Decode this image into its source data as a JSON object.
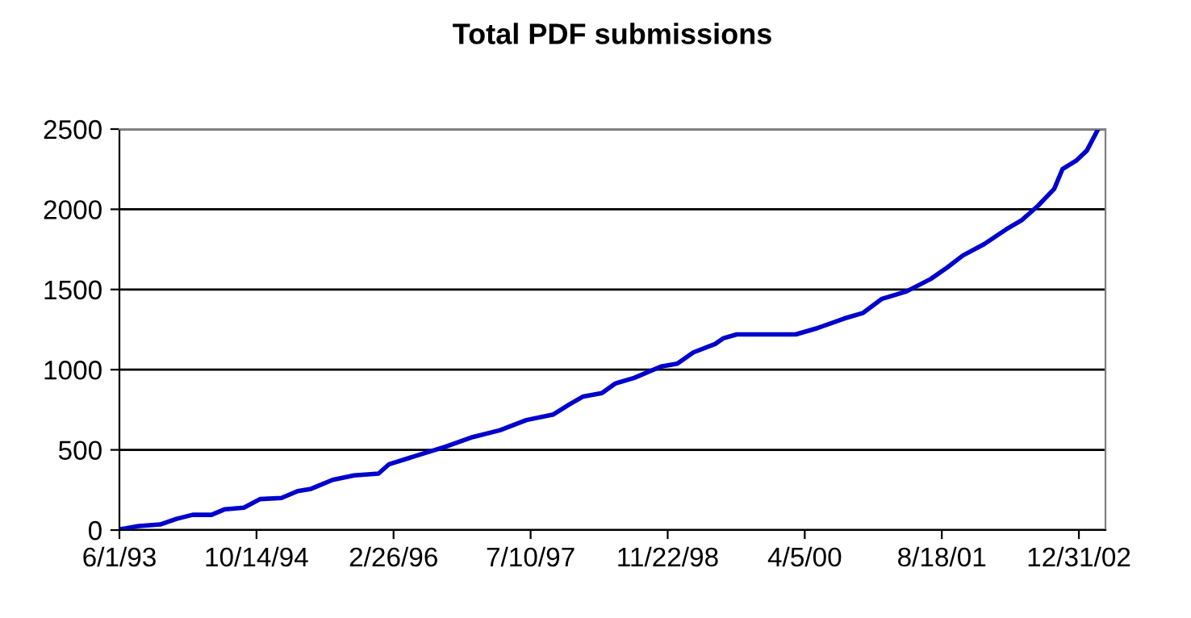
{
  "chart_data": {
    "type": "line",
    "title": "Total PDF submissions",
    "x": [
      "1993-06-01",
      "1993-06-22",
      "1993-08-11",
      "1993-10-28",
      "1993-12-26",
      "1994-02-23",
      "1994-05-03",
      "1994-06-21",
      "1994-08-29",
      "1994-10-27",
      "1995-01-13",
      "1995-03-13",
      "1995-05-01",
      "1995-07-19",
      "1995-10-05",
      "1996-01-02",
      "1996-02-10",
      "1996-05-28",
      "1996-09-03",
      "1996-12-11",
      "1997-03-19",
      "1997-06-25",
      "1997-10-01",
      "1997-11-29",
      "1998-01-18",
      "1998-03-27",
      "1998-05-15",
      "1998-07-23",
      "1998-10-29",
      "1998-12-27",
      "1999-02-24",
      "1999-05-14",
      "1999-06-12",
      "1999-08-01",
      "2000-03-03",
      "2000-05-21",
      "2000-08-27",
      "2000-11-04",
      "2001-01-12",
      "2001-04-10",
      "2001-07-08",
      "2001-09-05",
      "2001-11-03",
      "2002-01-20",
      "2002-04-09",
      "2002-06-07",
      "2002-08-04",
      "2002-10-02",
      "2002-11-01",
      "2002-12-21",
      "2003-01-29",
      "2003-03-10"
    ],
    "series": [
      {
        "color": "#0000cc",
        "values": [
          5,
          10,
          25,
          35,
          70,
          95,
          95,
          130,
          140,
          193,
          200,
          243,
          257,
          313,
          341,
          352,
          411,
          468,
          520,
          580,
          622,
          686,
          721,
          784,
          833,
          854,
          914,
          949,
          1020,
          1037,
          1108,
          1160,
          1195,
          1220,
          1220,
          1259,
          1319,
          1354,
          1442,
          1487,
          1565,
          1635,
          1712,
          1783,
          1874,
          1934,
          2022,
          2127,
          2250,
          2303,
          2366,
          2496
        ]
      }
    ],
    "xlim": [
      "1993-06-01",
      "2003-04-07"
    ],
    "xticks": [
      {
        "value": "1993-06-01",
        "label": "6/1/93"
      },
      {
        "value": "1994-10-14",
        "label": "10/14/94"
      },
      {
        "value": "1996-02-26",
        "label": "2/26/96"
      },
      {
        "value": "1997-07-10",
        "label": "7/10/97"
      },
      {
        "value": "1998-11-22",
        "label": "11/22/98"
      },
      {
        "value": "2000-04-05",
        "label": "4/5/00"
      },
      {
        "value": "2001-08-18",
        "label": "8/18/01"
      },
      {
        "value": "2002-12-31",
        "label": "12/31/02"
      }
    ],
    "ylim": [
      0,
      2500
    ],
    "yticks": [
      0,
      500,
      1000,
      1500,
      2000,
      2500
    ],
    "grid": "y",
    "legend": false,
    "marker": "none",
    "line_style": "solid"
  }
}
